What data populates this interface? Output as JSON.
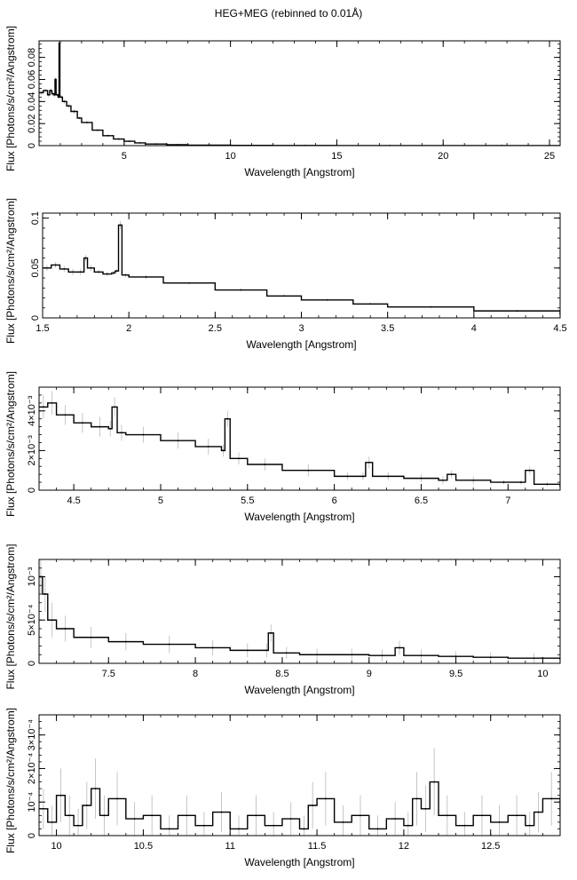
{
  "title": "HEG+MEG (rebinned to 0.01Å)",
  "chart_data": [
    {
      "type": "line",
      "xlabel": "Wavelength [Angstrom]",
      "ylabel": "Flux [Photons/s/cm²/Angstrom]",
      "xlim": [
        1.0,
        25.5
      ],
      "ylim": [
        0,
        0.095
      ],
      "xticks": [
        5,
        10,
        15,
        20,
        25
      ],
      "xtick_labels": [
        "5",
        "10",
        "15",
        "20",
        "25"
      ],
      "yticks": [
        0,
        0.02,
        0.04,
        0.06,
        0.08
      ],
      "ytick_labels": [
        "0",
        "0.02",
        "0.04",
        "0.06",
        "0.08"
      ],
      "grid": false,
      "x": [
        1.0,
        1.2,
        1.4,
        1.5,
        1.6,
        1.7,
        1.75,
        1.8,
        1.9,
        1.94,
        1.98,
        2.1,
        2.3,
        2.5,
        2.8,
        3.0,
        3.5,
        4.0,
        4.5,
        5.0,
        5.5,
        6.0,
        7.0,
        8.0,
        10.0,
        12.0,
        15.0,
        20.0,
        25.5
      ],
      "y": [
        0.048,
        0.05,
        0.046,
        0.05,
        0.047,
        0.046,
        0.06,
        0.046,
        0.044,
        0.093,
        0.044,
        0.04,
        0.036,
        0.031,
        0.025,
        0.021,
        0.014,
        0.009,
        0.006,
        0.004,
        0.0025,
        0.0015,
        0.0008,
        0.0004,
        0.0002,
        0.00012,
        8e-05,
        5e-05,
        3e-05
      ],
      "errors": [
        0.002,
        0.002,
        0.002,
        0.002,
        0.002,
        0.002,
        0.002,
        0.002,
        0.002,
        0.003,
        0.002,
        0.002,
        0.002,
        0.002,
        0.001,
        0.001,
        0.001,
        0.001,
        0.0008,
        0.0006,
        0.0005,
        0.0004,
        0.0003,
        0.0002,
        0.0001,
        0.0001,
        8e-05,
        5e-05,
        3e-05
      ]
    },
    {
      "type": "line",
      "xlabel": "Wavelength [Angstrom]",
      "ylabel": "Flux [Photons/s/cm²/Angstrom]",
      "xlim": [
        1.5,
        4.5
      ],
      "ylim": [
        0,
        0.105
      ],
      "xticks": [
        1.5,
        2,
        2.5,
        3,
        3.5,
        4,
        4.5
      ],
      "xtick_labels": [
        "1.5",
        "2",
        "2.5",
        "3",
        "3.5",
        "4",
        "4.5"
      ],
      "yticks": [
        0,
        0.05,
        0.1
      ],
      "ytick_labels": [
        "0",
        "0.05",
        "0.1"
      ],
      "grid": false,
      "x": [
        1.5,
        1.55,
        1.6,
        1.65,
        1.7,
        1.74,
        1.76,
        1.8,
        1.85,
        1.9,
        1.92,
        1.94,
        1.96,
        2.0,
        2.2,
        2.5,
        2.8,
        3.0,
        3.3,
        3.5,
        4.0,
        4.5
      ],
      "y": [
        0.05,
        0.053,
        0.049,
        0.046,
        0.046,
        0.06,
        0.05,
        0.046,
        0.044,
        0.045,
        0.047,
        0.093,
        0.043,
        0.041,
        0.035,
        0.028,
        0.022,
        0.018,
        0.014,
        0.011,
        0.007,
        0.004
      ],
      "errors": [
        0.003,
        0.003,
        0.003,
        0.003,
        0.003,
        0.003,
        0.003,
        0.002,
        0.002,
        0.002,
        0.002,
        0.004,
        0.002,
        0.002,
        0.001,
        0.001,
        0.001,
        0.001,
        0.001,
        0.001,
        0.0008,
        0.0006
      ]
    },
    {
      "type": "line",
      "xlabel": "Wavelength [Angstrom]",
      "ylabel": "Flux [Photons/s/cm²/Angstrom]",
      "xlim": [
        4.3,
        7.3
      ],
      "ylim": [
        0,
        0.0052
      ],
      "xticks": [
        4.5,
        5,
        5.5,
        6,
        6.5,
        7
      ],
      "xtick_labels": [
        "4.5",
        "5",
        "5.5",
        "6",
        "6.5",
        "7"
      ],
      "yticks": [
        0,
        0.002,
        0.004
      ],
      "ytick_labels": [
        "0",
        "2×10⁻³",
        "4×10⁻³"
      ],
      "grid": false,
      "x": [
        4.3,
        4.35,
        4.4,
        4.5,
        4.6,
        4.7,
        4.72,
        4.75,
        4.8,
        5.0,
        5.2,
        5.35,
        5.37,
        5.4,
        5.5,
        5.7,
        6.0,
        6.15,
        6.18,
        6.22,
        6.4,
        6.6,
        6.65,
        6.7,
        6.9,
        7.05,
        7.1,
        7.15,
        7.3
      ],
      "y": [
        0.0042,
        0.0044,
        0.0038,
        0.0034,
        0.0032,
        0.0031,
        0.0042,
        0.0029,
        0.0028,
        0.0025,
        0.0022,
        0.002,
        0.0036,
        0.0016,
        0.0013,
        0.001,
        0.0007,
        0.0007,
        0.0014,
        0.0007,
        0.0006,
        0.0005,
        0.0008,
        0.0005,
        0.0004,
        0.0004,
        0.001,
        0.0003,
        0.0002
      ],
      "errors": [
        0.0006,
        0.0006,
        0.0005,
        0.0005,
        0.0005,
        0.0004,
        0.0005,
        0.0004,
        0.0004,
        0.0004,
        0.0004,
        0.0003,
        0.0004,
        0.0003,
        0.0003,
        0.0003,
        0.0002,
        0.0002,
        0.0003,
        0.0002,
        0.0002,
        0.0002,
        0.0002,
        0.0002,
        0.0001,
        0.0001,
        0.0002,
        0.0001,
        0.0001
      ]
    },
    {
      "type": "line",
      "xlabel": "Wavelength [Angstrom]",
      "ylabel": "Flux [Photons/s/cm²/Angstrom]",
      "xlim": [
        7.1,
        10.1
      ],
      "ylim": [
        0,
        0.0012
      ],
      "xticks": [
        7.5,
        8,
        8.5,
        9,
        9.5,
        10
      ],
      "xtick_labels": [
        "7.5",
        "8",
        "8.5",
        "9",
        "9.5",
        "10"
      ],
      "yticks": [
        0,
        0.0005,
        0.001
      ],
      "ytick_labels": [
        "0",
        "5×10⁻⁴",
        "10⁻³"
      ],
      "grid": false,
      "x": [
        7.1,
        7.12,
        7.15,
        7.2,
        7.3,
        7.5,
        7.7,
        8.0,
        8.2,
        8.4,
        8.42,
        8.45,
        8.6,
        8.8,
        9.0,
        9.15,
        9.2,
        9.4,
        9.6,
        9.8,
        10.1
      ],
      "y": [
        0.001,
        0.0008,
        0.0005,
        0.0004,
        0.0003,
        0.00025,
        0.00022,
        0.00018,
        0.00015,
        0.00015,
        0.00035,
        0.00012,
        0.0001,
        0.0001,
        9e-05,
        0.00018,
        9e-05,
        8e-05,
        7e-05,
        6e-05,
        5e-05
      ],
      "errors": [
        0.0002,
        0.0002,
        0.0002,
        0.00015,
        0.00012,
        0.0001,
        0.0001,
        9e-05,
        8e-05,
        8e-05,
        0.0001,
        7e-05,
        7e-05,
        7e-05,
        7e-05,
        8e-05,
        7e-05,
        6e-05,
        6e-05,
        6e-05,
        5e-05
      ]
    },
    {
      "type": "line",
      "xlabel": "Wavelength [Angstrom]",
      "ylabel": "Flux [Photons/s/cm²/Angstrom]",
      "xlim": [
        9.9,
        12.9
      ],
      "ylim": [
        0,
        0.00036
      ],
      "xticks": [
        10,
        10.5,
        11,
        11.5,
        12,
        12.5
      ],
      "xtick_labels": [
        "10",
        "10.5",
        "11",
        "11.5",
        "12",
        "12.5"
      ],
      "yticks": [
        0,
        0.0001,
        0.0002,
        0.0003
      ],
      "ytick_labels": [
        "0",
        "10⁻⁴",
        "2×10⁻⁴",
        "3×10⁻⁴"
      ],
      "grid": false,
      "x": [
        9.9,
        9.95,
        10.0,
        10.05,
        10.1,
        10.15,
        10.2,
        10.25,
        10.3,
        10.4,
        10.5,
        10.6,
        10.7,
        10.8,
        10.9,
        11.0,
        11.1,
        11.2,
        11.3,
        11.4,
        11.45,
        11.5,
        11.6,
        11.7,
        11.8,
        11.9,
        12.0,
        12.05,
        12.1,
        12.15,
        12.2,
        12.3,
        12.4,
        12.5,
        12.6,
        12.7,
        12.75,
        12.8,
        12.9
      ],
      "y": [
        8e-05,
        4e-05,
        0.00012,
        6e-05,
        3e-05,
        9e-05,
        0.00014,
        6e-05,
        0.00011,
        5e-05,
        6e-05,
        2e-05,
        6e-05,
        3e-05,
        7e-05,
        2e-05,
        6e-05,
        3e-05,
        5e-05,
        2e-05,
        9e-05,
        0.00011,
        4e-05,
        6e-05,
        2e-05,
        5e-05,
        3e-05,
        0.00011,
        8e-05,
        0.00016,
        6e-05,
        3e-05,
        6e-05,
        4e-05,
        6e-05,
        3e-05,
        7e-05,
        0.00011,
        6e-05
      ],
      "errors": [
        6e-05,
        5e-05,
        8e-05,
        6e-05,
        5e-05,
        7e-05,
        9e-05,
        6e-05,
        8e-05,
        5e-05,
        6e-05,
        4e-05,
        6e-05,
        4e-05,
        6e-05,
        4e-05,
        6e-05,
        4e-05,
        5e-05,
        4e-05,
        7e-05,
        8e-05,
        5e-05,
        6e-05,
        4e-05,
        5e-05,
        4e-05,
        8e-05,
        7e-05,
        0.0001,
        6e-05,
        4e-05,
        6e-05,
        5e-05,
        6e-05,
        4e-05,
        6e-05,
        8e-05,
        6e-05
      ]
    }
  ]
}
